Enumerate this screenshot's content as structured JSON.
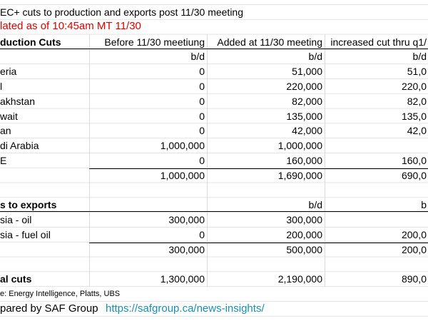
{
  "sheet": {
    "title": "EC+ cuts to production and exports post 11/30 meeting",
    "updated": "lated as of 10:45am MT 11/30",
    "header": [
      "duction Cuts",
      "Before 11/30 meetiung",
      "Added at 11/30 meeting",
      "increased cut thru q1/"
    ],
    "rows": [
      {
        "row": 3,
        "cells": {
          "1": "b/d",
          "2": "b/d",
          "3": "b/d"
        }
      },
      {
        "row": 4,
        "cells": {
          "0": "eria",
          "1": "0",
          "2": "51,000",
          "3": "51,0"
        }
      },
      {
        "row": 5,
        "cells": {
          "0": "l",
          "1": "0",
          "2": "220,000",
          "3": "220,0"
        }
      },
      {
        "row": 6,
        "cells": {
          "0": "akhstan",
          "1": "0",
          "2": "82,000",
          "3": "82,0"
        }
      },
      {
        "row": 7,
        "cells": {
          "0": "wait",
          "1": "0",
          "2": "135,000",
          "3": "135,0"
        }
      },
      {
        "row": 8,
        "cells": {
          "0": "an",
          "1": "0",
          "2": "42,000",
          "3": "42,0"
        }
      },
      {
        "row": 9,
        "cells": {
          "0": "di Arabia",
          "1": "1,000,000",
          "2": "1,000,000"
        }
      },
      {
        "row": 10,
        "cells": {
          "0": "E",
          "1": "0",
          "2": "160,000",
          "3": "160,0"
        }
      },
      {
        "row": 11,
        "cells": {
          "1": "1,000,000",
          "2": "1,690,000",
          "3": "690,0"
        }
      },
      {
        "row": 13,
        "cells": {
          "0": "s to exports",
          "2": "b/d",
          "3": "b"
        }
      },
      {
        "row": 14,
        "cells": {
          "0": "sia - oil",
          "1": "300,000",
          "2": "300,000"
        }
      },
      {
        "row": 15,
        "cells": {
          "0": "sia - fuel oil",
          "1": "0",
          "2": "200,000",
          "3": "200,0"
        }
      },
      {
        "row": 16,
        "cells": {
          "1": "300,000",
          "2": "500,000",
          "3": "200,0"
        }
      },
      {
        "row": 18,
        "cells": {
          "0": "al cuts",
          "1": "1,300,000",
          "2": "2,190,000",
          "3": "890,0"
        }
      }
    ],
    "source": "e: Energy Intelligence, Platts, UBS",
    "prepared": "pared by SAF Group",
    "link": "https://safgroup.ca/news-insights/"
  }
}
